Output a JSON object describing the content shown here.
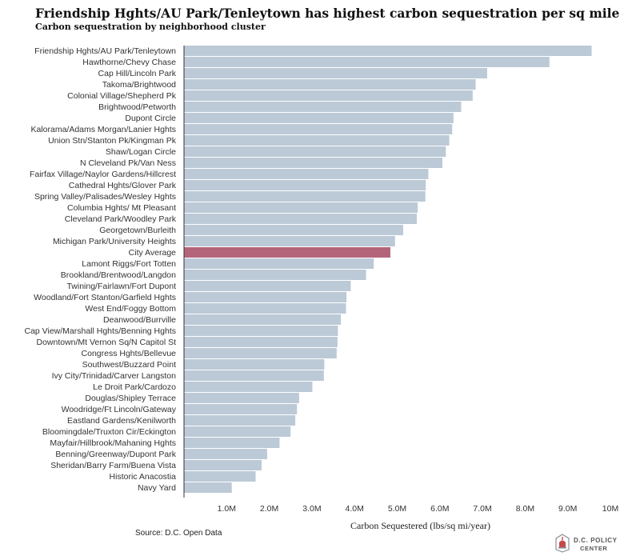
{
  "colors": {
    "bar": "#bcc9d6",
    "highlight": "#b5657a",
    "axis": "#333333",
    "text": "#333333"
  },
  "chart_data": {
    "type": "bar",
    "orientation": "horizontal",
    "title": "Friendship Hghts/AU Park/Tenleytown has highest carbon sequestration per sq mile",
    "subtitle": "Carbon sequestration by neighborhood cluster",
    "xlabel": "Carbon Sequestered (lbs/sq mi/year)",
    "ylabel": "",
    "xlim": [
      0,
      10000000
    ],
    "grid": false,
    "highlighted_category": "City Average",
    "xticks": [
      {
        "value": 1000000,
        "label": "1.0M"
      },
      {
        "value": 2000000,
        "label": "2.0M"
      },
      {
        "value": 3000000,
        "label": "3.0M"
      },
      {
        "value": 4000000,
        "label": "4.0M"
      },
      {
        "value": 5000000,
        "label": "5.0M"
      },
      {
        "value": 6000000,
        "label": "6.0M"
      },
      {
        "value": 7000000,
        "label": "7.0M"
      },
      {
        "value": 8000000,
        "label": "8.0M"
      },
      {
        "value": 9000000,
        "label": "9.0M"
      },
      {
        "value": 10000000,
        "label": "10M"
      }
    ],
    "categories": [
      "Friendship Hghts/AU Park/Tenleytown",
      "Hawthorne/Chevy Chase",
      "Cap Hill/Lincoln Park",
      "Takoma/Brightwood",
      "Colonial Village/Shepherd Pk",
      "Brightwood/Petworth",
      "Dupont Circle",
      "Kalorama/Adams Morgan/Lanier Hghts",
      "Union Stn/Stanton Pk/Kingman Pk",
      "Shaw/Logan Circle",
      "N Cleveland Pk/Van Ness",
      "Fairfax Village/Naylor Gardens/Hillcrest",
      "Cathedral Hghts/Glover Park",
      "Spring Valley/Palisades/Wesley Hghts",
      "Columbia Hghts/ Mt Pleasant",
      "Cleveland Park/Woodley Park",
      "Georgetown/Burleith",
      "Michigan Park/University Heights",
      "City Average",
      "Lamont Riggs/Fort Totten",
      "Brookland/Brentwood/Langdon",
      "Twining/Fairlawn/Fort Dupont",
      "Woodland/Fort Stanton/Garfield Hghts",
      "West End/Foggy Bottom",
      "Deanwood/Burrville",
      "Cap View/Marshall Hghts/Benning Hghts",
      "Downtown/Mt Vernon Sq/N Capitol St",
      "Congress Hghts/Bellevue",
      "Southwest/Buzzard Point",
      "Ivy City/Trinidad/Carver Langston",
      "Le Droit Park/Cardozo",
      "Douglas/Shipley Terrace",
      "Woodridge/Ft Lincoln/Gateway",
      "Eastland Gardens/Kenilworth",
      "Bloomingdale/Truxton Cir/Eckington",
      "Mayfair/Hillbrook/Mahaning Hghts",
      "Benning/Greenway/Dupont Park",
      "Sheridan/Barry Farm/Buena Vista",
      "Historic Anacostia",
      "Navy Yard"
    ],
    "values": [
      9560000,
      8570000,
      7110000,
      6840000,
      6770000,
      6500000,
      6320000,
      6290000,
      6220000,
      6140000,
      6060000,
      5730000,
      5670000,
      5660000,
      5480000,
      5460000,
      5140000,
      4950000,
      4840000,
      4450000,
      4270000,
      3910000,
      3810000,
      3800000,
      3680000,
      3610000,
      3600000,
      3580000,
      3290000,
      3280000,
      3010000,
      2700000,
      2650000,
      2610000,
      2500000,
      2240000,
      1950000,
      1820000,
      1680000,
      1120000
    ]
  },
  "source": "Source: D.C. Open Data",
  "logo": {
    "line1": "D.C. POLICY",
    "line2": "CENTER"
  }
}
